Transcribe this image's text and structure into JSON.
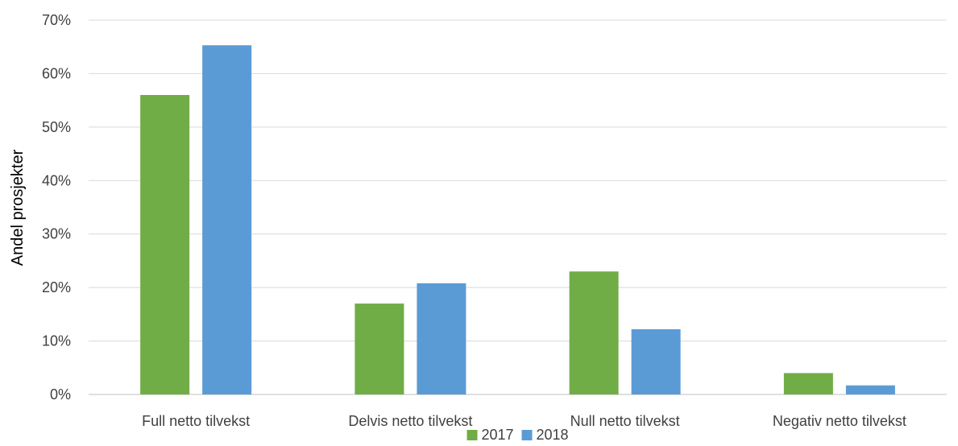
{
  "chart_data": {
    "type": "bar",
    "title": "",
    "xlabel": "",
    "ylabel": "Andel prosjekter",
    "ylim": [
      0,
      70
    ],
    "y_ticks": [
      "0%",
      "10%",
      "20%",
      "30%",
      "40%",
      "50%",
      "60%",
      "70%"
    ],
    "y_tick_values": [
      0,
      10,
      20,
      30,
      40,
      50,
      60,
      70
    ],
    "grid": true,
    "legend_position": "bottom",
    "categories": [
      "Full netto tilvekst",
      "Delvis netto tilvekst",
      "Null netto tilvekst",
      "Negativ netto tilvekst"
    ],
    "series": [
      {
        "name": "2017",
        "color": "#70ad47",
        "values": [
          56,
          17,
          23,
          4
        ]
      },
      {
        "name": "2018",
        "color": "#5b9bd5",
        "values": [
          65.3,
          20.8,
          12.2,
          1.7
        ]
      }
    ]
  }
}
